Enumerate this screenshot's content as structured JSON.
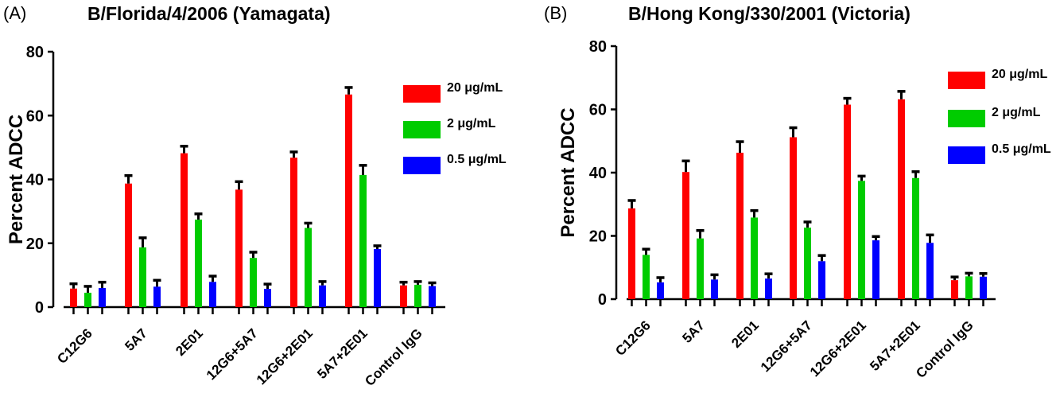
{
  "colors": {
    "s20": "#ff0000",
    "s2": "#00cc00",
    "s05": "#0000ff",
    "axis": "#000000"
  },
  "chart_data": [
    {
      "type": "bar",
      "panel": "(A)",
      "title": "B/Florida/4/2006 (Yamagata)",
      "ylabel": "Percent ADCC",
      "xlabel": "",
      "ylim": [
        0,
        80
      ],
      "yticks": [
        "0",
        "20",
        "40",
        "60",
        "80"
      ],
      "grid": false,
      "legend_position": "top-right",
      "categories": [
        "C12G6",
        "5A7",
        "2E01",
        "12G6+5A7",
        "12G6+2E01",
        "5A7+2E01",
        "Control IgG"
      ],
      "series": [
        {
          "name": "20 μg/mL",
          "color": "#ff0000",
          "values": [
            5.8,
            38.7,
            48.2,
            36.8,
            46.8,
            66.6,
            6.8
          ],
          "errors": [
            1.5,
            2.5,
            2.2,
            2.5,
            1.8,
            2.2,
            1.0
          ]
        },
        {
          "name": "2 μg/mL",
          "color": "#00cc00",
          "values": [
            4.5,
            18.7,
            27.4,
            15.4,
            24.8,
            41.4,
            7.0
          ],
          "errors": [
            2.0,
            3.0,
            1.8,
            1.8,
            1.5,
            3.0,
            1.0
          ]
        },
        {
          "name": "0.5 μg/mL",
          "color": "#0000ff",
          "values": [
            6.0,
            6.4,
            7.9,
            5.7,
            6.8,
            18.2,
            6.6
          ],
          "errors": [
            1.8,
            2.0,
            1.8,
            1.5,
            1.2,
            1.0,
            1.0
          ]
        }
      ]
    },
    {
      "type": "bar",
      "panel": "(B)",
      "title": "B/Hong Kong/330/2001 (Victoria)",
      "ylabel": "Percent ADCC",
      "xlabel": "",
      "ylim": [
        0,
        80
      ],
      "yticks": [
        "0",
        "20",
        "40",
        "60",
        "80"
      ],
      "grid": false,
      "legend_position": "top-right",
      "categories": [
        "C12G6",
        "5A7",
        "2E01",
        "12G6+5A7",
        "12G6+2E01",
        "5A7+2E01",
        "Control IgG"
      ],
      "series": [
        {
          "name": "20 μg/mL",
          "color": "#ff0000",
          "values": [
            28.7,
            40.2,
            46.3,
            51.2,
            61.5,
            63.2,
            6.0
          ],
          "errors": [
            2.5,
            3.5,
            3.5,
            3.0,
            2.0,
            2.5,
            1.0
          ]
        },
        {
          "name": "2 μg/mL",
          "color": "#00cc00",
          "values": [
            14.0,
            19.2,
            25.8,
            22.6,
            37.4,
            38.3,
            7.2
          ],
          "errors": [
            1.8,
            2.5,
            2.2,
            1.8,
            1.5,
            2.0,
            1.0
          ]
        },
        {
          "name": "0.5 μg/mL",
          "color": "#0000ff",
          "values": [
            5.3,
            6.2,
            6.5,
            12.0,
            18.6,
            17.8,
            7.1
          ],
          "errors": [
            1.5,
            1.5,
            1.5,
            1.8,
            1.2,
            2.5,
            1.0
          ]
        }
      ]
    }
  ]
}
